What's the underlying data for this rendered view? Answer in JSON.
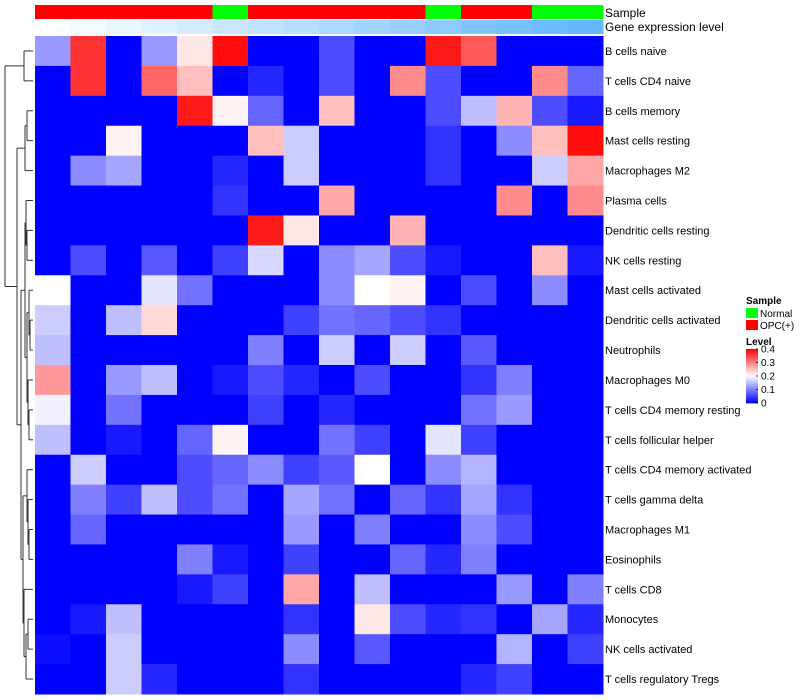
{
  "chart_data": {
    "type": "heatmap",
    "annotations": {
      "sample_label": "Sample",
      "gene_label": "Gene expression level",
      "sample": [
        "OPC(+)",
        "OPC(+)",
        "OPC(+)",
        "OPC(+)",
        "OPC(+)",
        "Normal",
        "OPC(+)",
        "OPC(+)",
        "OPC(+)",
        "OPC(+)",
        "OPC(+)",
        "Normal",
        "OPC(+)",
        "OPC(+)",
        "Normal",
        "Normal"
      ],
      "gene_level": [
        0.0,
        0.03,
        0.06,
        0.1,
        0.13,
        0.16,
        0.19,
        0.22,
        0.26,
        0.29,
        0.32,
        0.35,
        0.39,
        0.42,
        0.45,
        0.48
      ]
    },
    "rows": [
      "B cells naive",
      "T cells CD4 naive",
      "B cells memory",
      "Mast cells resting",
      "Macrophages M2",
      "Plasma cells",
      "Dendritic cells resting",
      "NK cells resting",
      "Mast cells activated",
      "Dendritic cells activated",
      "Neutrophils",
      "Macrophages M0",
      "T cells CD4 memory resting",
      "T cells follicular helper",
      "T cells CD4 memory activated",
      "T cells gamma delta",
      "Macrophages M1",
      "Eosinophils",
      "T cells CD8",
      "Monocytes",
      "NK cells activated",
      "T cells regulatory  Tregs"
    ],
    "values": [
      [
        0.12,
        0.36,
        0.0,
        0.12,
        0.22,
        0.39,
        0.0,
        0.0,
        0.06,
        0.0,
        0.0,
        0.38,
        0.33,
        0.0,
        0.0,
        0.0
      ],
      [
        0.0,
        0.36,
        0.0,
        0.32,
        0.25,
        0.0,
        0.03,
        0.0,
        0.06,
        0.0,
        0.29,
        0.06,
        0.0,
        0.0,
        0.29,
        0.08
      ],
      [
        0.0,
        0.0,
        0.0,
        0.0,
        0.38,
        0.21,
        0.08,
        0.0,
        0.25,
        0.0,
        0.0,
        0.06,
        0.15,
        0.26,
        0.06,
        0.02
      ],
      [
        0.0,
        0.0,
        0.21,
        0.0,
        0.0,
        0.0,
        0.25,
        0.16,
        0.0,
        0.0,
        0.0,
        0.04,
        0.0,
        0.11,
        0.25,
        0.39
      ],
      [
        0.0,
        0.11,
        0.13,
        0.0,
        0.0,
        0.03,
        0.0,
        0.16,
        0.0,
        0.0,
        0.0,
        0.04,
        0.0,
        0.0,
        0.16,
        0.27
      ],
      [
        0.0,
        0.0,
        0.0,
        0.0,
        0.0,
        0.04,
        0.0,
        0.0,
        0.27,
        0.0,
        0.0,
        0.0,
        0.0,
        0.29,
        0.0,
        0.29
      ],
      [
        0.0,
        0.0,
        0.0,
        0.0,
        0.0,
        0.0,
        0.38,
        0.22,
        0.0,
        0.0,
        0.26,
        0.0,
        0.0,
        0.0,
        0.0,
        0.0
      ],
      [
        0.0,
        0.06,
        0.0,
        0.07,
        0.0,
        0.05,
        0.17,
        0.0,
        0.11,
        0.13,
        0.06,
        0.02,
        0.0,
        0.0,
        0.25,
        0.02
      ],
      [
        0.2,
        0.0,
        0.0,
        0.18,
        0.09,
        0.0,
        0.0,
        0.0,
        0.11,
        0.2,
        0.21,
        0.0,
        0.06,
        0.0,
        0.11,
        0.0
      ],
      [
        0.16,
        0.0,
        0.15,
        0.23,
        0.0,
        0.0,
        0.0,
        0.05,
        0.09,
        0.08,
        0.06,
        0.04,
        0.0,
        0.0,
        0.0,
        0.0
      ],
      [
        0.15,
        0.0,
        0.0,
        0.0,
        0.0,
        0.0,
        0.1,
        0.0,
        0.16,
        0.0,
        0.16,
        0.0,
        0.07,
        0.0,
        0.0,
        0.0
      ],
      [
        0.28,
        0.0,
        0.12,
        0.15,
        0.0,
        0.02,
        0.06,
        0.03,
        0.0,
        0.06,
        0.0,
        0.0,
        0.04,
        0.1,
        0.0,
        0.0
      ],
      [
        0.19,
        0.0,
        0.09,
        0.0,
        0.0,
        0.0,
        0.05,
        0.0,
        0.03,
        0.0,
        0.0,
        0.0,
        0.09,
        0.12,
        0.0,
        0.0
      ],
      [
        0.15,
        0.0,
        0.02,
        0.0,
        0.08,
        0.21,
        0.0,
        0.0,
        0.09,
        0.05,
        0.0,
        0.18,
        0.05,
        0.0,
        0.0,
        0.0
      ],
      [
        0.0,
        0.16,
        0.0,
        0.0,
        0.06,
        0.08,
        0.11,
        0.05,
        0.07,
        0.2,
        0.0,
        0.11,
        0.14,
        0.0,
        0.0,
        0.0
      ],
      [
        0.0,
        0.1,
        0.05,
        0.15,
        0.06,
        0.09,
        0.0,
        0.13,
        0.09,
        0.0,
        0.08,
        0.04,
        0.13,
        0.04,
        0.0,
        0.0
      ],
      [
        0.0,
        0.08,
        0.0,
        0.0,
        0.0,
        0.0,
        0.0,
        0.12,
        0.0,
        0.1,
        0.0,
        0.0,
        0.11,
        0.06,
        0.0,
        0.0
      ],
      [
        0.0,
        0.0,
        0.0,
        0.0,
        0.1,
        0.02,
        0.0,
        0.05,
        0.0,
        0.0,
        0.08,
        0.03,
        0.1,
        0.0,
        0.0,
        0.0
      ],
      [
        0.0,
        0.0,
        0.0,
        0.0,
        0.02,
        0.05,
        0.0,
        0.27,
        0.0,
        0.15,
        0.0,
        0.0,
        0.0,
        0.12,
        0.0,
        0.1
      ],
      [
        0.0,
        0.02,
        0.15,
        0.0,
        0.0,
        0.0,
        0.0,
        0.04,
        0.0,
        0.22,
        0.06,
        0.03,
        0.04,
        0.0,
        0.13,
        0.03
      ],
      [
        0.01,
        0.0,
        0.16,
        0.0,
        0.0,
        0.0,
        0.0,
        0.11,
        0.0,
        0.07,
        0.0,
        0.0,
        0.0,
        0.14,
        0.0,
        0.05
      ],
      [
        0.0,
        0.0,
        0.16,
        0.03,
        0.0,
        0.0,
        0.0,
        0.04,
        0.0,
        0.0,
        0.0,
        0.0,
        0.03,
        0.05,
        0.0,
        0.0
      ]
    ],
    "row_dendrogram": "hierarchical clustering tree drawn on left",
    "colors": {
      "normal": "#00ff00",
      "opc": "#ff0000",
      "low": "#0000ff",
      "mid": "#ffffff",
      "high": "#ff0000",
      "gene_low": "#ffffff",
      "gene_high": "#63b8ff"
    },
    "legend": {
      "sample_title": "Sample",
      "sample_items": [
        {
          "label": "Normal",
          "color": "#00ff00"
        },
        {
          "label": "OPC(+)",
          "color": "#ff0000"
        }
      ],
      "level_title": "Level",
      "level_ticks": [
        "0.4",
        "0.3",
        "0.2",
        "0.1",
        "0"
      ],
      "level_tick_values": [
        0.4,
        0.3,
        0.2,
        0.1,
        0.0
      ],
      "placement": "right"
    },
    "scale_range": [
      0,
      0.4
    ]
  }
}
